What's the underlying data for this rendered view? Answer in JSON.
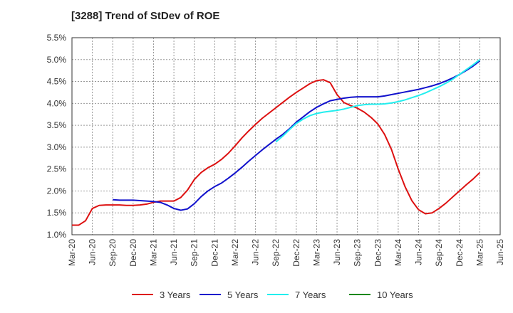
{
  "chart_data": {
    "type": "line",
    "title": "[3288]  Trend of StDev of ROE",
    "xlabel": "",
    "ylabel": "",
    "ylim": [
      1.0,
      5.5
    ],
    "y_ticks": [
      "1.0%",
      "1.5%",
      "2.0%",
      "2.5%",
      "3.0%",
      "3.5%",
      "4.0%",
      "4.5%",
      "5.0%",
      "5.5%"
    ],
    "x_ticks": [
      "Mar-20",
      "Jun-20",
      "Sep-20",
      "Dec-20",
      "Mar-21",
      "Jun-21",
      "Sep-21",
      "Dec-21",
      "Mar-22",
      "Jun-22",
      "Sep-22",
      "Dec-22",
      "Mar-23",
      "Jun-23",
      "Sep-23",
      "Dec-23",
      "Mar-24",
      "Jun-24",
      "Sep-24",
      "Dec-24",
      "Mar-25",
      "Jun-25"
    ],
    "grid": true,
    "legend_position": "bottom",
    "x_unit": "month index from Mar-20",
    "series": [
      {
        "name": "3 Years",
        "color": "#dd1111",
        "x": [
          0,
          1,
          2,
          3,
          4,
          5,
          6,
          7,
          8,
          9,
          10,
          11,
          12,
          13,
          14,
          15,
          16,
          17,
          18,
          19,
          20,
          21,
          22,
          23,
          24,
          25,
          26,
          27,
          28,
          29,
          30,
          31,
          32,
          33,
          34,
          35,
          36,
          37,
          38,
          39,
          40,
          41,
          42,
          43,
          44,
          45,
          46,
          47,
          48,
          49,
          50,
          51,
          52,
          53,
          54,
          55,
          56,
          57,
          58,
          59,
          60
        ],
        "values": [
          1.22,
          1.22,
          1.32,
          1.6,
          1.67,
          1.68,
          1.68,
          1.68,
          1.67,
          1.67,
          1.68,
          1.7,
          1.74,
          1.77,
          1.77,
          1.77,
          1.85,
          2.02,
          2.26,
          2.42,
          2.53,
          2.61,
          2.72,
          2.86,
          3.03,
          3.21,
          3.37,
          3.52,
          3.66,
          3.78,
          3.9,
          4.02,
          4.14,
          4.25,
          4.35,
          4.45,
          4.52,
          4.54,
          4.47,
          4.2,
          4.02,
          3.95,
          3.89,
          3.8,
          3.68,
          3.53,
          3.29,
          2.95,
          2.5,
          2.1,
          1.78,
          1.57,
          1.48,
          1.5,
          1.6,
          1.72,
          1.86,
          2.0,
          2.14,
          2.27,
          2.42
        ]
      },
      {
        "name": "5 Years",
        "color": "#1111cc",
        "x": [
          6,
          7,
          8,
          9,
          10,
          11,
          12,
          13,
          14,
          15,
          16,
          17,
          18,
          19,
          20,
          21,
          22,
          23,
          24,
          25,
          26,
          27,
          28,
          29,
          30,
          31,
          32,
          33,
          34,
          35,
          36,
          37,
          38,
          39,
          40,
          41,
          42,
          43,
          44,
          45,
          46,
          47,
          48,
          49,
          50,
          51,
          52,
          53,
          54,
          55,
          56,
          57,
          58,
          59,
          60
        ],
        "values": [
          1.8,
          1.79,
          1.79,
          1.79,
          1.78,
          1.77,
          1.76,
          1.74,
          1.68,
          1.6,
          1.56,
          1.59,
          1.71,
          1.87,
          2.0,
          2.1,
          2.18,
          2.29,
          2.41,
          2.54,
          2.68,
          2.81,
          2.94,
          3.06,
          3.18,
          3.29,
          3.42,
          3.57,
          3.69,
          3.81,
          3.91,
          3.99,
          4.06,
          4.09,
          4.12,
          4.14,
          4.15,
          4.15,
          4.15,
          4.15,
          4.17,
          4.2,
          4.23,
          4.26,
          4.29,
          4.32,
          4.36,
          4.4,
          4.45,
          4.51,
          4.58,
          4.66,
          4.75,
          4.85,
          4.97
        ]
      },
      {
        "name": "7 Years",
        "color": "#22eeee",
        "x": [
          30,
          31,
          32,
          33,
          34,
          35,
          36,
          37,
          38,
          39,
          40,
          41,
          42,
          43,
          44,
          45,
          46,
          47,
          48,
          49,
          50,
          51,
          52,
          53,
          54,
          55,
          56,
          57,
          58,
          59,
          60
        ],
        "values": [
          3.12,
          3.25,
          3.4,
          3.54,
          3.64,
          3.72,
          3.77,
          3.8,
          3.82,
          3.84,
          3.87,
          3.91,
          3.95,
          3.97,
          3.98,
          3.98,
          3.99,
          4.01,
          4.04,
          4.08,
          4.13,
          4.18,
          4.24,
          4.31,
          4.38,
          4.46,
          4.55,
          4.66,
          4.77,
          4.88,
          5.0
        ]
      },
      {
        "name": "10 Years",
        "color": "#118811",
        "x": [],
        "values": []
      }
    ]
  }
}
